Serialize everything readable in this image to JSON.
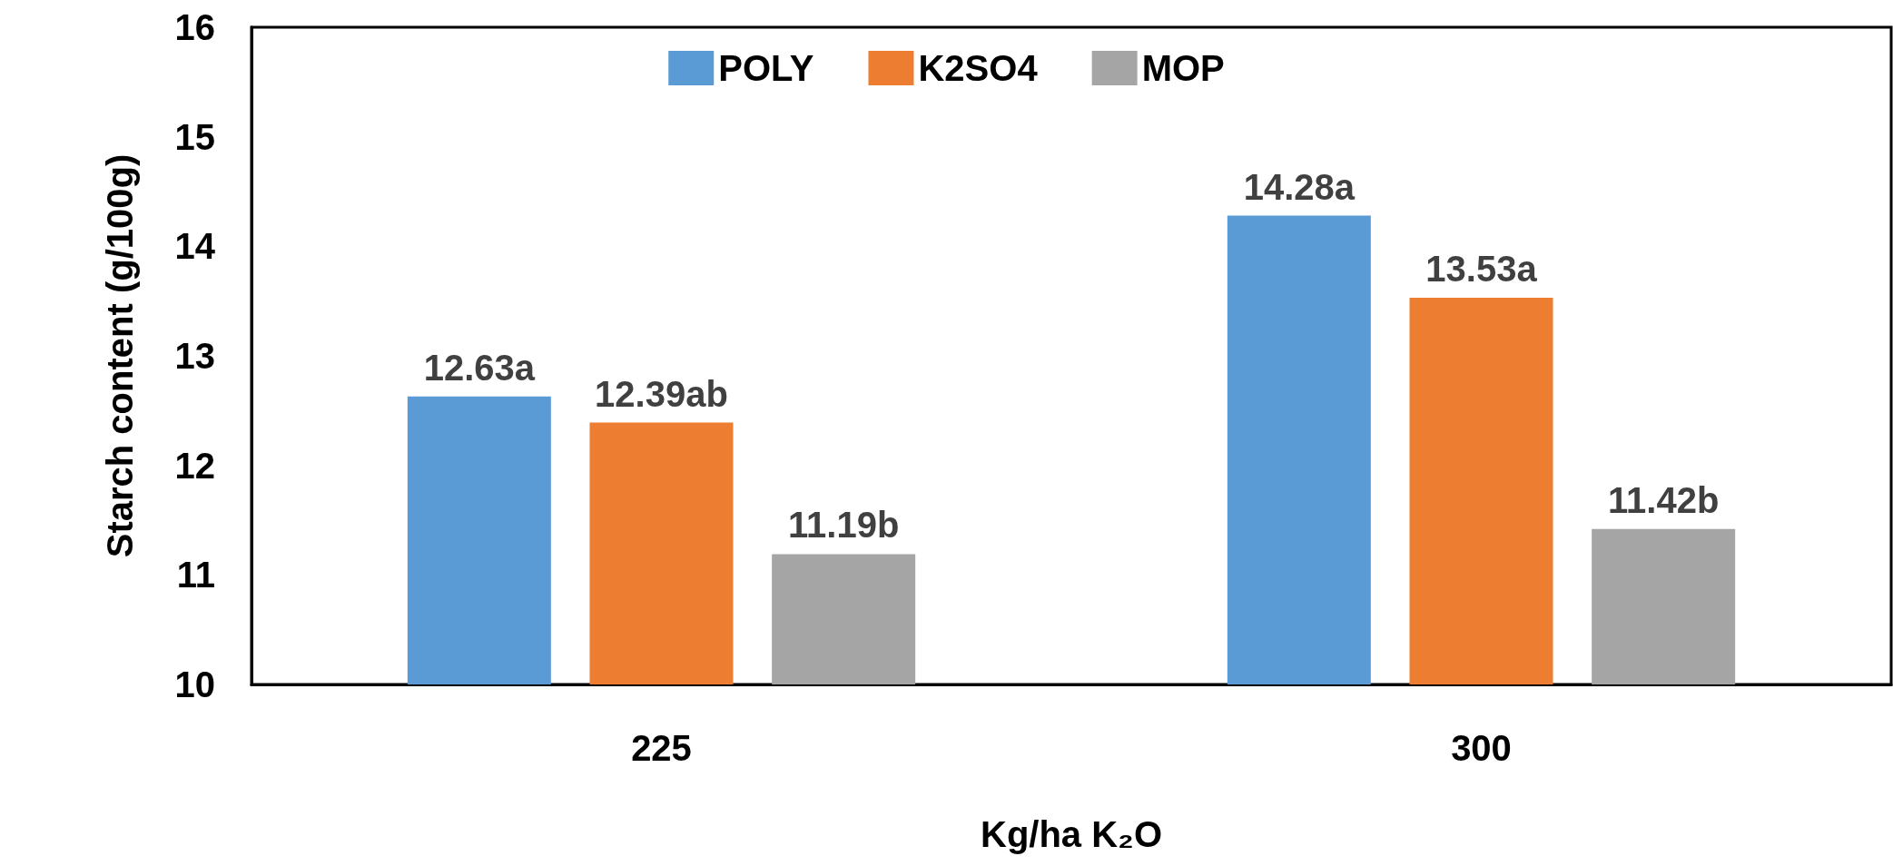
{
  "chart_data": {
    "type": "bar",
    "xlabel": "Kg/ha K₂O",
    "ylabel": "Starch content (g/100g)",
    "categories": [
      "225",
      "300"
    ],
    "series": [
      {
        "name": "POLY",
        "color": "#5b9bd5",
        "values": [
          12.63,
          14.28
        ],
        "value_labels": [
          "12.63a",
          "14.28a"
        ]
      },
      {
        "name": "K2SO4",
        "color": "#ed7d31",
        "values": [
          12.39,
          13.53
        ],
        "value_labels": [
          "12.39ab",
          "13.53a"
        ]
      },
      {
        "name": "MOP",
        "color": "#a5a5a5",
        "values": [
          11.19,
          11.42
        ],
        "value_labels": [
          "11.19b",
          "11.42b"
        ]
      }
    ],
    "ylim": [
      10,
      16
    ],
    "yticks": [
      10,
      11,
      12,
      13,
      14,
      15,
      16
    ],
    "grid": false,
    "legend": "top"
  }
}
